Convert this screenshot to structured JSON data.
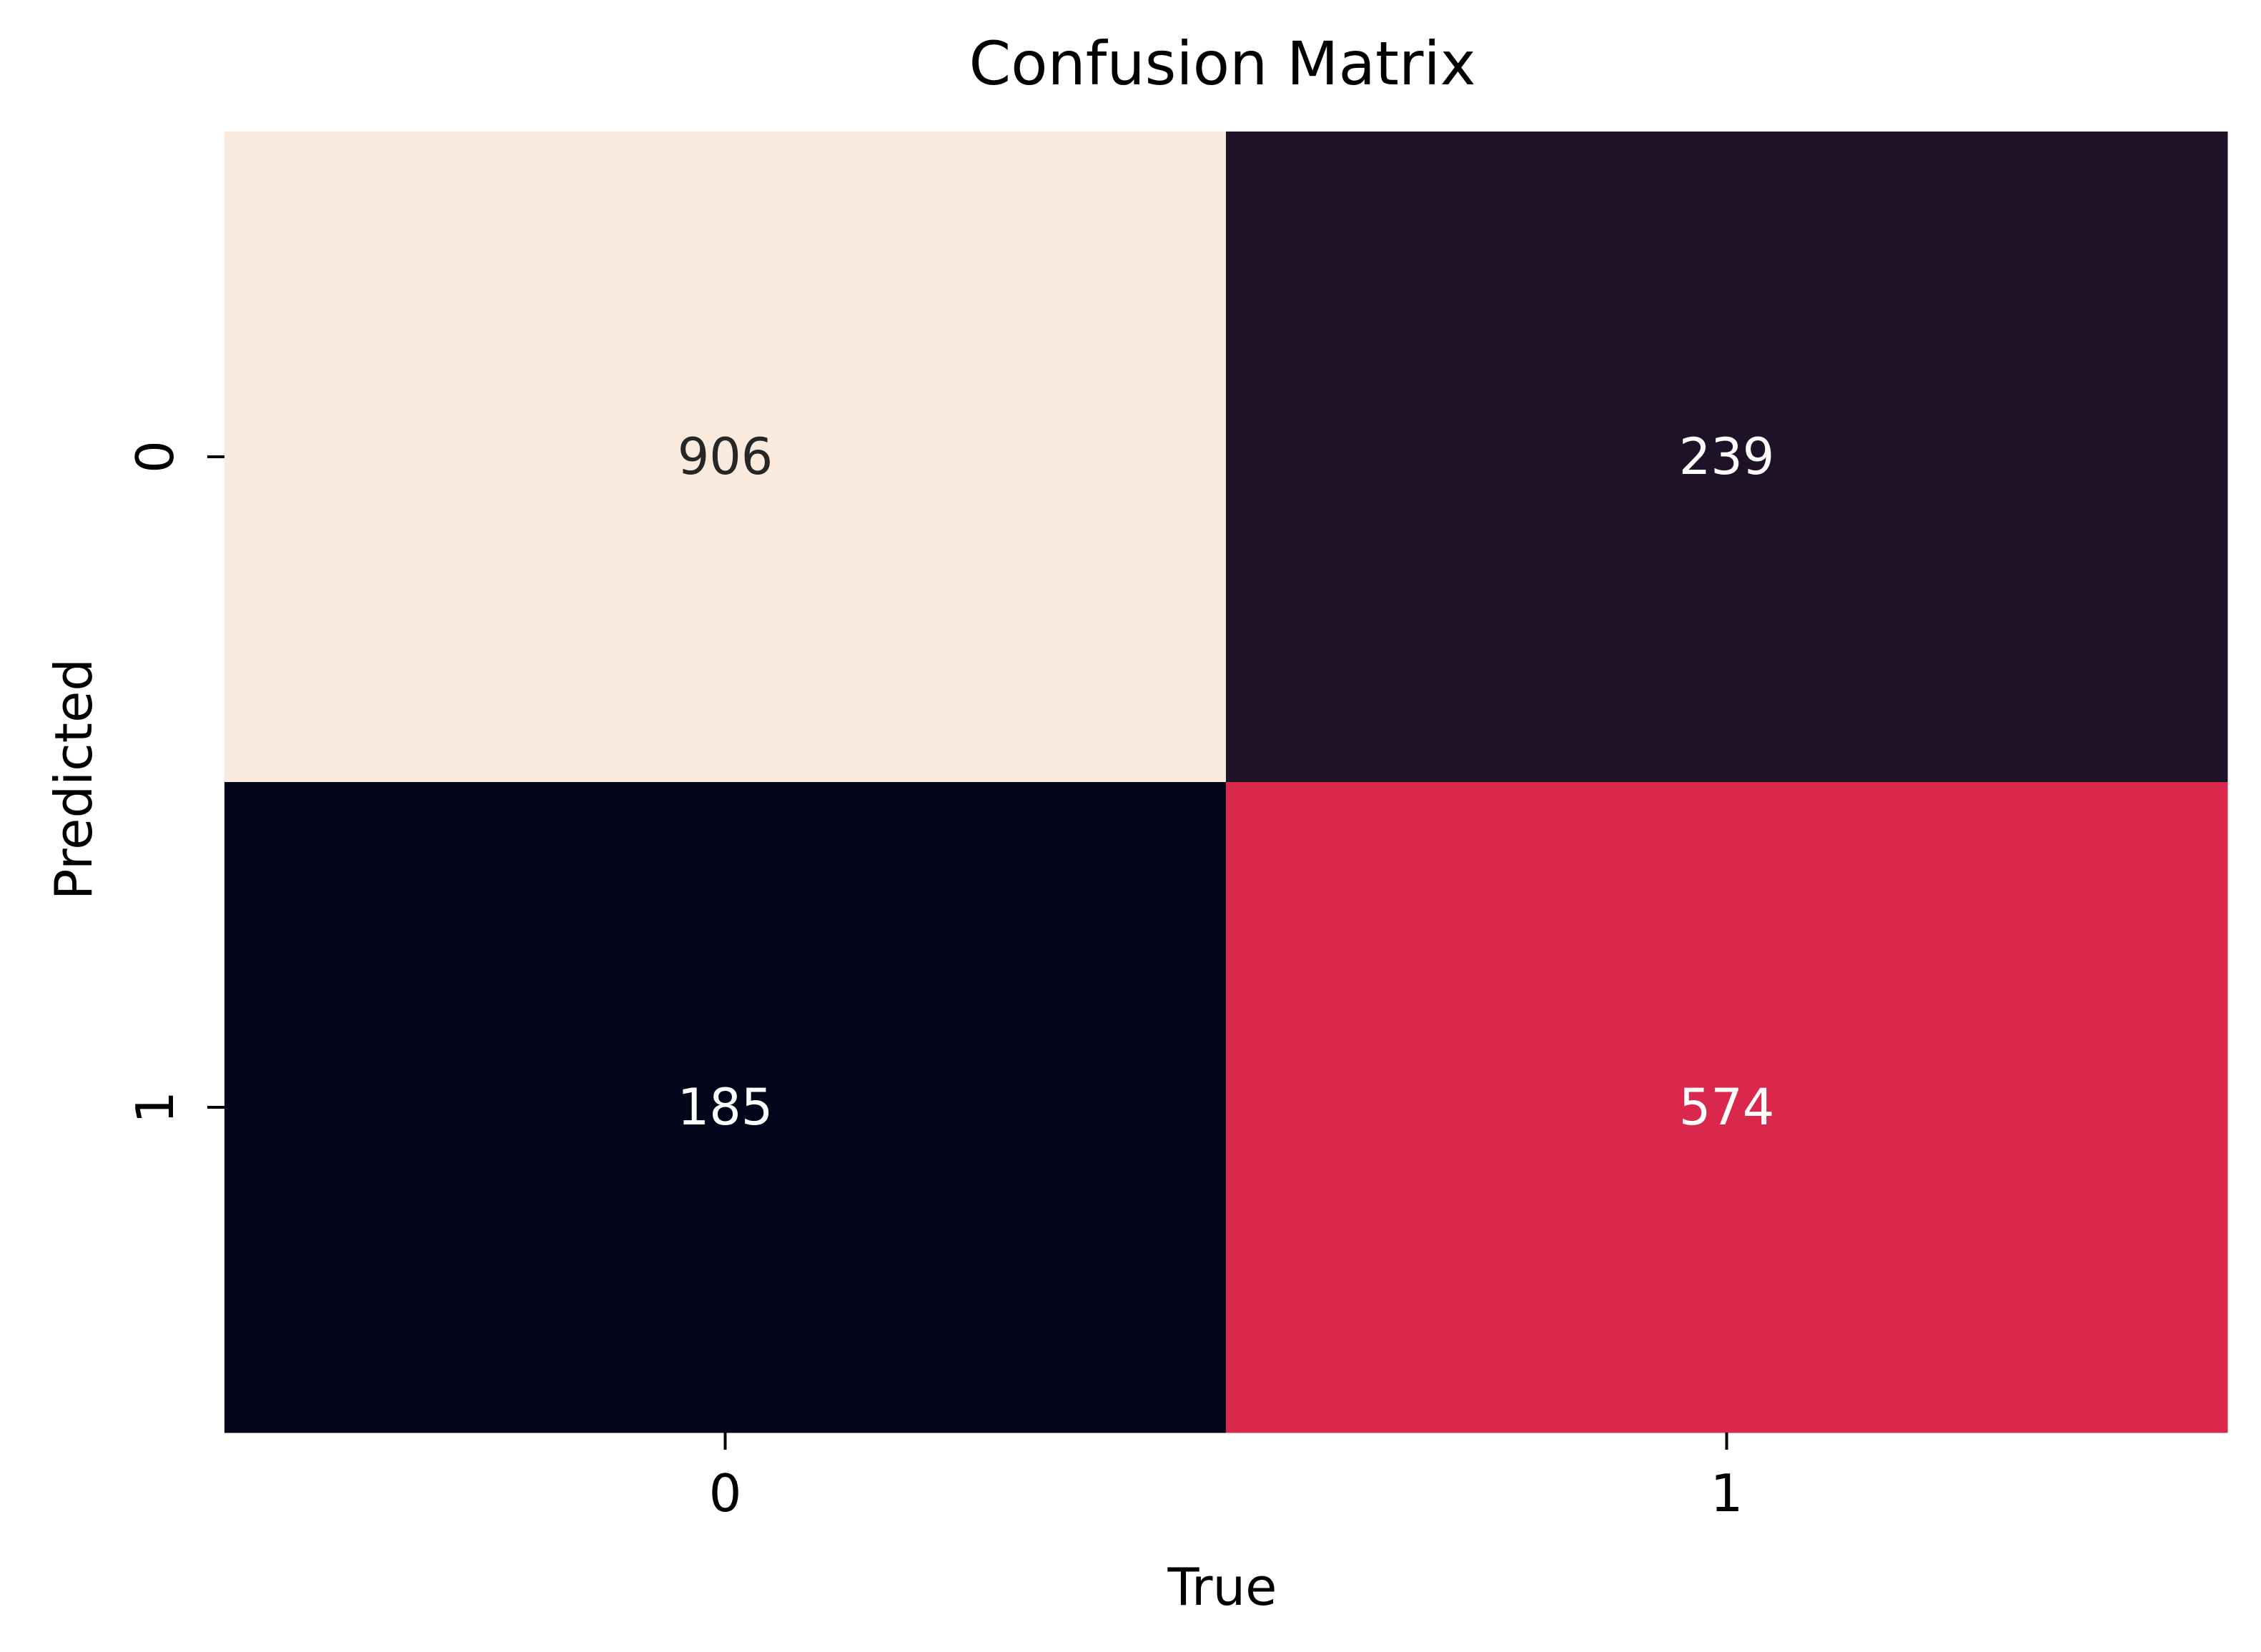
{
  "chart_data": {
    "type": "heatmap",
    "title": "Confusion Matrix",
    "xlabel": "True",
    "ylabel": "Predicted",
    "x_categories": [
      "0",
      "1"
    ],
    "y_categories": [
      "0",
      "1"
    ],
    "values": [
      [
        906,
        239
      ],
      [
        185,
        574
      ]
    ],
    "colormap": "rocket",
    "colorbar": false,
    "cell_colors": [
      [
        "#faeade",
        "#1e1229"
      ],
      [
        "#03051a",
        "#da284c"
      ]
    ],
    "annotation_colors": [
      [
        "#262626",
        "#ffffff"
      ],
      [
        "#ffffff",
        "#ffffff"
      ]
    ]
  }
}
